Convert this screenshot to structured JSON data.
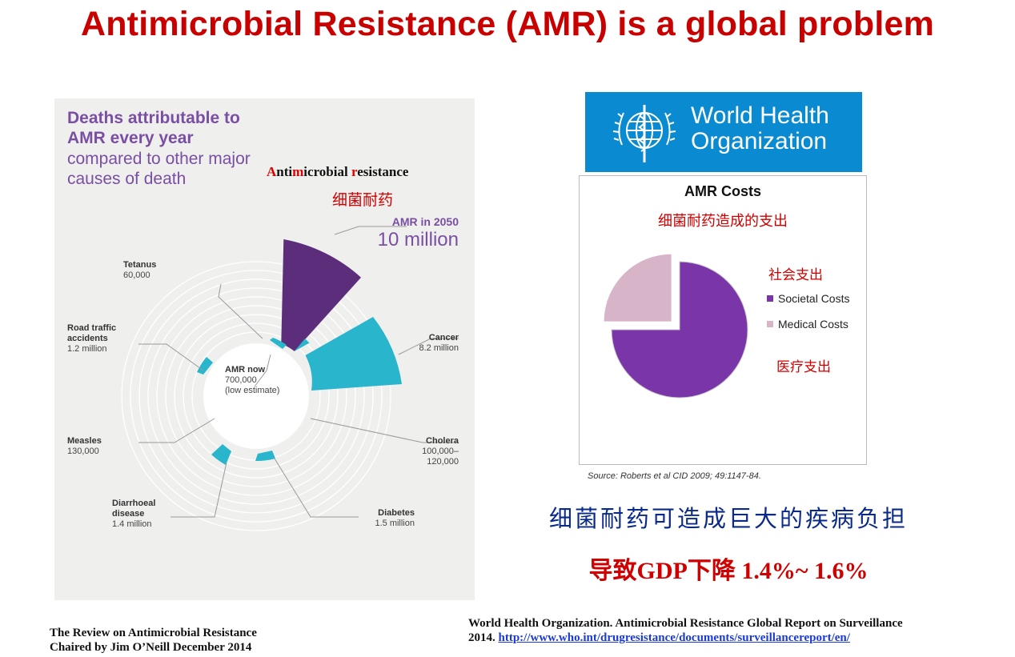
{
  "title": "Antimicrobial Resistance (AMR) is a global problem",
  "infographic": {
    "heading_bold": "Deaths attributable to AMR every year",
    "heading_rest": "compared to other major causes of death",
    "amr_label_en": {
      "p1": "A",
      "p2": "nti",
      "p3": "m",
      "p4": "icrobial ",
      "p5": "r",
      "p6": "esistance"
    },
    "amr_label_zh": "细菌耐药",
    "amr_2050_title": "AMR in 2050",
    "amr_2050_value": "10 million",
    "amr_now": {
      "name": "AMR now",
      "value": "700,000",
      "note": "(low estimate)"
    },
    "causes": [
      {
        "name": "Tetanus",
        "value": "60,000"
      },
      {
        "name": "Road traffic accidents",
        "value": "1.2 million"
      },
      {
        "name": "Measles",
        "value": "130,000"
      },
      {
        "name": "Diarrhoeal disease",
        "value": "1.4 million"
      },
      {
        "name": "Diabetes",
        "value": "1.5 million"
      },
      {
        "name": "Cholera",
        "value": "100,000– 120,000"
      },
      {
        "name": "Cancer",
        "value": "8.2 million"
      }
    ]
  },
  "who": {
    "name": "World Health\nOrganization",
    "color": "#0a8ad0"
  },
  "costs": {
    "title": "AMR Costs",
    "title_zh": "细菌耐药造成的支出",
    "societal_zh": "社会支出",
    "medical_zh": "医疗支出",
    "source": "Source: Roberts et al CID 2009; 49:1147-84.",
    "chart_data": {
      "type": "pie",
      "categories": [
        "Societal Costs",
        "Medical Costs"
      ],
      "values": [
        75,
        25
      ],
      "colors": [
        "#7a36a8",
        "#d8b4c8"
      ]
    }
  },
  "burden_zh": "细菌耐药可造成巨大的疾病负担",
  "gdp_zh": "导致GDP下降 1.4%~ 1.6%",
  "references": {
    "left_line1": "The Review on Antimicrobial Resistance",
    "left_line2": "Chaired by Jim O’Neill December 2014",
    "right_line1": "World Health Organization. Antimicrobial Resistance Global Report on Surveillance",
    "right_line2_prefix": "2014. ",
    "right_url": "http://www.who.int/drugresistance/documents/surveillancereport/en/"
  }
}
